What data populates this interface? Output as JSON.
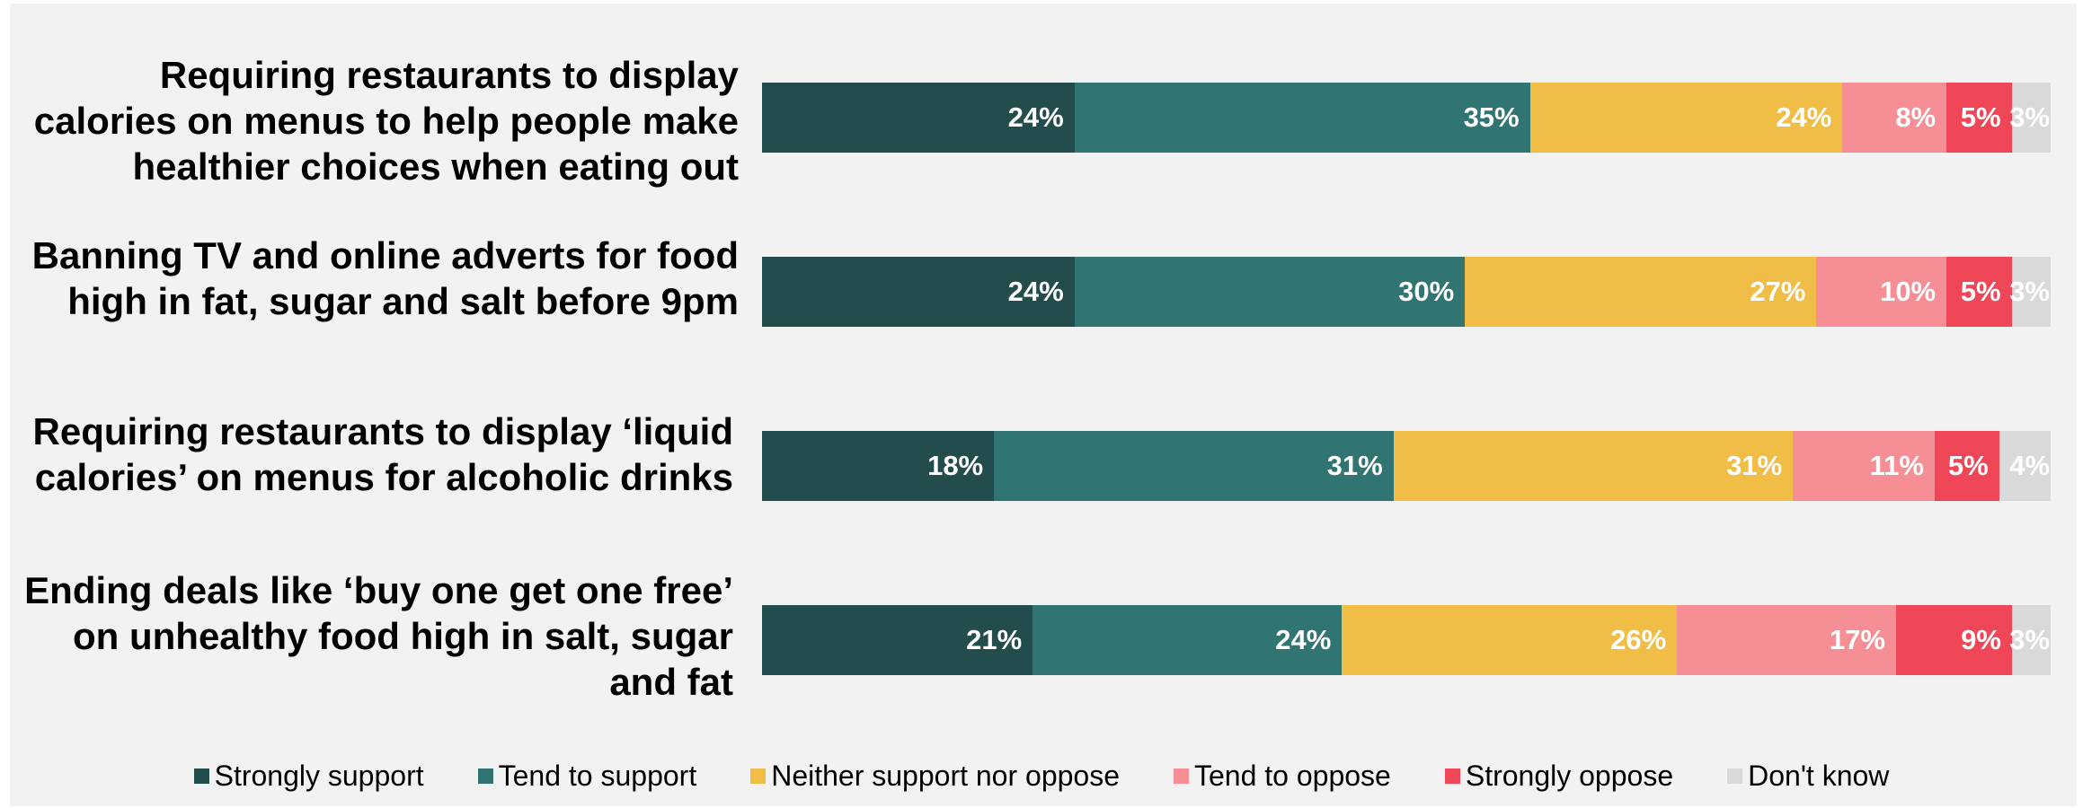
{
  "chart_data": {
    "type": "bar",
    "orientation": "horizontal",
    "stacked": true,
    "normalized_percent": true,
    "categories": [
      "Requiring restaurants to display calories on menus to help people make healthier choices when eating out",
      "Banning TV and online adverts for food high in fat, sugar and salt before 9pm",
      "Requiring restaurants to display ‘liquid calories’ on menus for alcoholic drinks",
      "Ending deals like ‘buy one get one free’ on unhealthy food high in salt, sugar and fat"
    ],
    "series": [
      {
        "name": "Strongly support",
        "color": "#234c4d",
        "values": [
          24,
          24,
          18,
          21
        ]
      },
      {
        "name": "Tend to support",
        "color": "#317573",
        "values": [
          35,
          30,
          31,
          24
        ]
      },
      {
        "name": "Neither support nor oppose",
        "color": "#f0bd47",
        "values": [
          24,
          27,
          31,
          26
        ]
      },
      {
        "name": "Tend to oppose",
        "color": "#f68e96",
        "values": [
          8,
          10,
          11,
          17
        ]
      },
      {
        "name": "Strongly oppose",
        "color": "#ef4757",
        "values": [
          5,
          5,
          5,
          9
        ]
      },
      {
        "name": "Don't know",
        "color": "#d9d9d9",
        "values": [
          3,
          3,
          4,
          3
        ]
      }
    ],
    "data_labels": [
      [
        "24%",
        "35%",
        "24%",
        "8%",
        "5%",
        "3%"
      ],
      [
        "24%",
        "30%",
        "27%",
        "10%",
        "5%",
        "3%"
      ],
      [
        "18%",
        "31%",
        "31%",
        "11%",
        "5%",
        "4%"
      ],
      [
        "21%",
        "24%",
        "26%",
        "17%",
        "9%",
        "3%"
      ]
    ],
    "legend_position": "bottom",
    "grid": false
  },
  "row_labels": [
    [
      "Requiring restaurants to display",
      "calories on menus to help people make",
      "healthier choices when eating out"
    ],
    [
      "Banning TV and online adverts for food",
      "high in fat, sugar and salt before 9pm"
    ],
    [
      "Requiring restaurants to display ‘liquid",
      "calories’ on menus for alcoholic drinks"
    ],
    [
      "Ending deals like ‘buy one get one free’",
      "on unhealthy food high in salt, sugar",
      "and fat"
    ]
  ],
  "legend": {
    "items": [
      {
        "label": "Strongly support",
        "color": "#234c4d"
      },
      {
        "label": "Tend to support",
        "color": "#317573"
      },
      {
        "label": "Neither support nor oppose",
        "color": "#f0bd47"
      },
      {
        "label": "Tend to oppose",
        "color": "#f68e96"
      },
      {
        "label": "Strongly oppose",
        "color": "#ef4757"
      },
      {
        "label": "Don't know",
        "color": "#d9d9d9"
      }
    ]
  }
}
